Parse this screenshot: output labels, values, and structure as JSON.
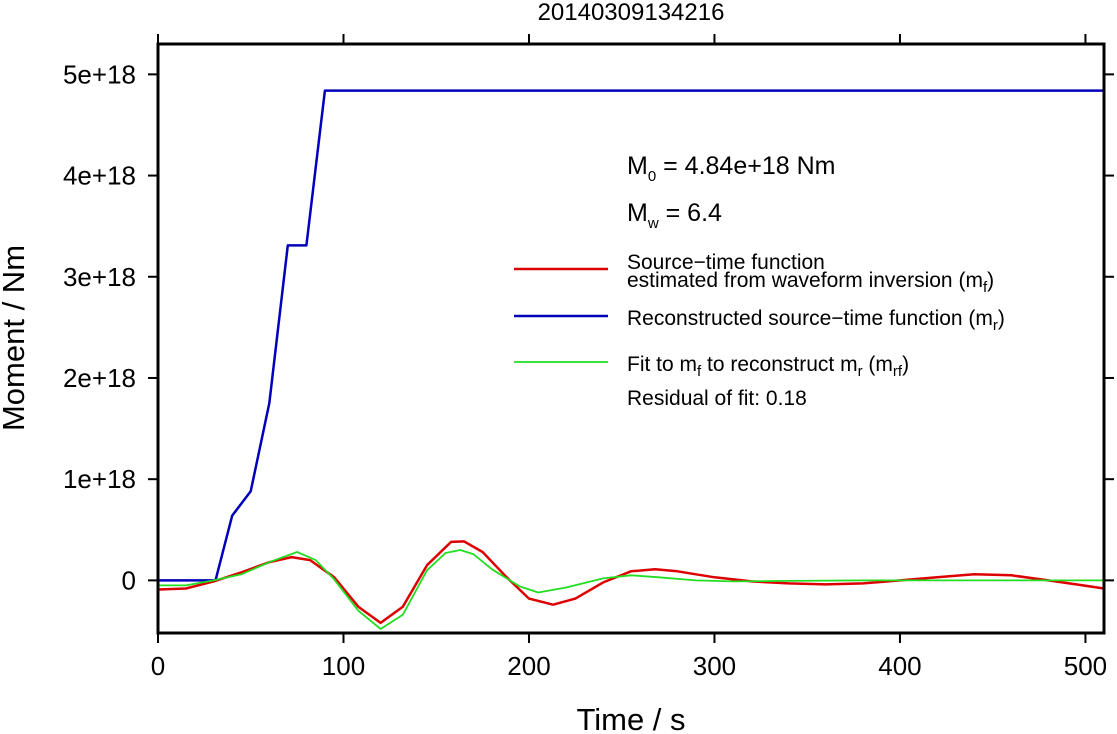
{
  "chart_data": {
    "type": "line",
    "title": "20140309134216",
    "xlabel": "Time / s",
    "ylabel": "Moment / Nm",
    "xlim": [
      0,
      510
    ],
    "ylim": [
      -5.2e+17,
      5.3e+18
    ],
    "x_ticks": [
      0,
      100,
      200,
      300,
      400,
      500
    ],
    "x_tick_labels": [
      "0",
      "100",
      "200",
      "300",
      "400",
      "500"
    ],
    "y_ticks": [
      0,
      1e+18,
      2e+18,
      3e+18,
      4e+18,
      5e+18
    ],
    "y_tick_labels": [
      "0",
      "1e+18",
      "2e+18",
      "3e+18",
      "4e+18",
      "5e+18"
    ],
    "grid": false,
    "legend_position": "right",
    "annotations": {
      "m0": {
        "main": "M",
        "sub": "0",
        "rest": " = 4.84e+18 Nm"
      },
      "mw": {
        "main": "M",
        "sub": "w",
        "rest": " = 6.4"
      },
      "residual": "Residual of fit: 0.18"
    },
    "legend": [
      {
        "series": "mf",
        "color": "#dd0000",
        "line1": "Source−time function",
        "line2_pre": "estimated from waveform inversion (m",
        "line2_sub": "f",
        "line2_post": ")"
      },
      {
        "series": "mr",
        "color": "#0000bb",
        "line1_pre": "Reconstructed source−time function (m",
        "line1_sub": "r",
        "line1_post": ")"
      },
      {
        "series": "mrf",
        "color": "#22dd22",
        "t1": "Fit to m",
        "s1": "f",
        "t2": " to reconstruct m",
        "s2": "r",
        "t3": " (m",
        "s3": "rf",
        "t4": ")"
      }
    ],
    "series": [
      {
        "id": "mr",
        "color": "#0000bb",
        "x": [
          0,
          31,
          40,
          50,
          60,
          70,
          80,
          90,
          510
        ],
        "y": [
          0,
          0,
          6.4e+17,
          8.8e+17,
          1.75e+18,
          3.31e+18,
          3.31e+18,
          4.84e+18,
          4.84e+18
        ]
      },
      {
        "id": "mf",
        "color": "#dd0000",
        "x": [
          0,
          15,
          30,
          45,
          60,
          72,
          82,
          95,
          108,
          120,
          132,
          145,
          158,
          165,
          175,
          188,
          200,
          213,
          225,
          240,
          255,
          268,
          280,
          300,
          320,
          340,
          360,
          380,
          400,
          420,
          440,
          460,
          480,
          495,
          510
        ],
        "y": [
          -9e+16,
          -8e+16,
          -1e+16,
          8e+16,
          1.8e+17,
          2.3e+17,
          2e+17,
          3e+16,
          -2.6e+17,
          -4.2e+17,
          -2.6e+17,
          1.5e+17,
          3.8e+17,
          3.85e+17,
          2.8e+17,
          3e+16,
          -1.8e+17,
          -2.4e+17,
          -1.8e+17,
          -2e+16,
          9e+16,
          1.1e+17,
          9e+16,
          3e+16,
          -1e+16,
          -3e+16,
          -4e+16,
          -3e+16,
          0,
          3e+16,
          6e+16,
          5e+16,
          0,
          -4e+16,
          -8e+16
        ]
      },
      {
        "id": "mrf",
        "color": "#22dd22",
        "x": [
          0,
          15,
          30,
          45,
          60,
          75,
          85,
          95,
          108,
          120,
          132,
          145,
          155,
          163,
          170,
          180,
          195,
          205,
          220,
          240,
          255,
          270,
          290,
          310,
          340,
          380,
          420,
          460,
          510
        ],
        "y": [
          -5e+16,
          -5e+16,
          0,
          6e+16,
          1.8e+17,
          2.8e+17,
          2e+17,
          1e+16,
          -3e+17,
          -4.8e+17,
          -3.4e+17,
          1e+17,
          2.7e+17,
          3e+17,
          2.6e+17,
          1.1e+17,
          -6e+16,
          -1.2e+17,
          -7e+16,
          2e+16,
          5e+16,
          3e+16,
          0,
          -1e+16,
          -5000000000000000.0,
          0,
          0,
          0,
          0
        ]
      }
    ]
  }
}
